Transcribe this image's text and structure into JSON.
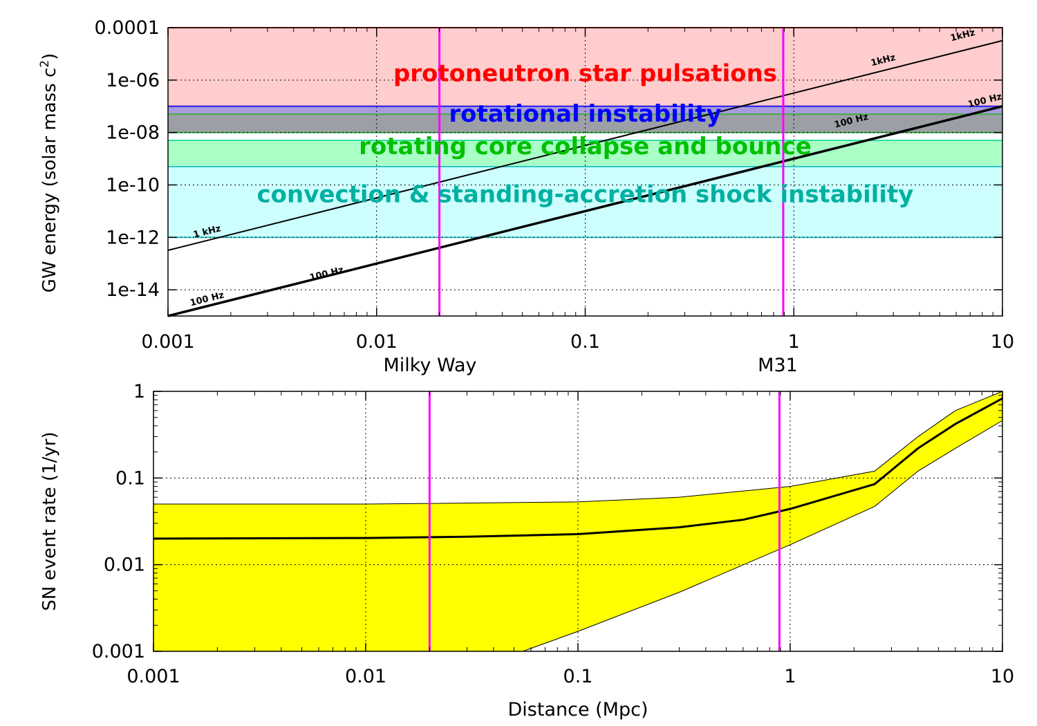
{
  "chart_data": [
    {
      "type": "line",
      "ylabel": "GW energy (solar mass c",
      "ylabel_sup": "2",
      "ylabel_end": ")",
      "xscale": "log",
      "yscale": "log",
      "xlim": [
        0.001,
        10
      ],
      "ylim": [
        1e-15,
        0.0001
      ],
      "grid": true,
      "x_ticks": [
        {
          "value": 0.001,
          "label": "0.001"
        },
        {
          "value": 0.01,
          "label": "0.01"
        },
        {
          "value": 0.1,
          "label": "0.1"
        },
        {
          "value": 1,
          "label": "1"
        },
        {
          "value": 10,
          "label": "10"
        }
      ],
      "y_ticks": [
        {
          "value": 0.0001,
          "label": "0.0001"
        },
        {
          "value": 1e-06,
          "label": "1e-06"
        },
        {
          "value": 1e-08,
          "label": "1e-08"
        },
        {
          "value": 1e-10,
          "label": "1e-10"
        },
        {
          "value": 1e-12,
          "label": "1e-12"
        },
        {
          "value": 1e-14,
          "label": "1e-14"
        }
      ],
      "bands": [
        {
          "name": "protoneutron star pulsations",
          "y_range": [
            1e-07,
            0.0001
          ],
          "fill": "#ffc8c8",
          "edge": "#ff2020",
          "text_color": "#ff0000",
          "label_x": 0.1,
          "label_y": 9e-07
        },
        {
          "name": "rotational instability",
          "y_range": [
            1e-08,
            1e-07
          ],
          "fill": "#a090d8",
          "edge": "#2020ff",
          "text_color": "#0000ff",
          "label_x": 0.1,
          "label_y": 2.6e-08
        },
        {
          "name": "",
          "y_range": [
            1e-08,
            5e-08
          ],
          "fill": "#9aa0a0",
          "edge": "#40b040",
          "text_color": "",
          "label_x": null,
          "label_y": null
        },
        {
          "name": "rotating core collapse and bounce",
          "y_range": [
            5e-10,
            5e-09
          ],
          "fill": "#a0ffc0",
          "edge": "#30e0a0",
          "text_color": "#00c000",
          "label_x": 0.1,
          "label_y": 1.5e-09
        },
        {
          "name": "convection & standing-accretion shock instability",
          "y_range": [
            1e-12,
            5e-10
          ],
          "fill": "#c8ffff",
          "edge": "#30c8c8",
          "text_color": "#00b0a0",
          "label_x": 0.1,
          "label_y": 2.2e-11
        }
      ],
      "series": [
        {
          "name": "1 kHz",
          "x": [
            0.001,
            10
          ],
          "y": [
            3.2e-13,
            3.2e-05
          ],
          "color": "#000000"
        },
        {
          "name": "100 Hz",
          "x": [
            0.001,
            10
          ],
          "y": [
            1e-15,
            1e-07
          ],
          "color": "#000000"
        }
      ],
      "line_labels": [
        {
          "text": "1 kHz",
          "x": 0.00155,
          "y": 1.3e-12
        },
        {
          "text": "1kHz",
          "x": 2.7,
          "y": 4.5e-06
        },
        {
          "text": "1kHz",
          "x": 6.5,
          "y": 4e-05
        },
        {
          "text": "100 Hz",
          "x": 0.00155,
          "y": 3.5e-15
        },
        {
          "text": "100 Hz",
          "x": 0.0058,
          "y": 3.2e-14
        },
        {
          "text": "100 Hz",
          "x": 1.9,
          "y": 2.2e-08
        },
        {
          "text": "100 Hz",
          "x": 8.3,
          "y": 1.3e-07
        }
      ],
      "reference_lines": [
        {
          "name": "Milky Way",
          "x": 0.02,
          "color": "#ff00ff"
        },
        {
          "name": "M31",
          "x": 0.89,
          "color": "#ff00ff"
        }
      ]
    },
    {
      "type": "area",
      "xlabel": "Distance (Mpc)",
      "ylabel": "SN event rate (1/yr)",
      "xscale": "log",
      "yscale": "log",
      "xlim": [
        0.001,
        10
      ],
      "ylim": [
        0.001,
        1
      ],
      "grid": true,
      "x_ticks": [
        {
          "value": 0.001,
          "label": "0.001"
        },
        {
          "value": 0.01,
          "label": "0.01"
        },
        {
          "value": 0.1,
          "label": "0.1"
        },
        {
          "value": 1,
          "label": "1"
        },
        {
          "value": 10,
          "label": "10"
        }
      ],
      "y_ticks": [
        {
          "value": 1,
          "label": "1"
        },
        {
          "value": 0.1,
          "label": "0.1"
        },
        {
          "value": 0.01,
          "label": "0.01"
        },
        {
          "value": 0.001,
          "label": "0.001"
        }
      ],
      "band": {
        "fill": "#ffff00",
        "upper": {
          "x": [
            0.001,
            0.01,
            0.1,
            0.3,
            1,
            2.5,
            4,
            6,
            10
          ],
          "y": [
            0.05,
            0.05,
            0.053,
            0.06,
            0.08,
            0.12,
            0.3,
            0.6,
            1.0
          ]
        },
        "lower": {
          "x": [
            0.001,
            0.055,
            0.1,
            0.3,
            1,
            2.5,
            4,
            6,
            10
          ],
          "y": [
            0.001,
            0.001,
            0.0017,
            0.0048,
            0.017,
            0.047,
            0.12,
            0.22,
            0.46
          ]
        }
      },
      "series": [
        {
          "name": "",
          "x": [
            0.001,
            0.01,
            0.03,
            0.1,
            0.3,
            0.6,
            1,
            2.5,
            4,
            6,
            10
          ],
          "y": [
            0.02,
            0.0203,
            0.021,
            0.0225,
            0.027,
            0.033,
            0.044,
            0.085,
            0.22,
            0.42,
            0.83
          ],
          "color": "#000000"
        }
      ],
      "reference_lines": [
        {
          "name": "Milky Way",
          "x": 0.02,
          "color": "#ff00ff"
        },
        {
          "name": "M31",
          "x": 0.89,
          "color": "#ff00ff"
        }
      ]
    }
  ]
}
